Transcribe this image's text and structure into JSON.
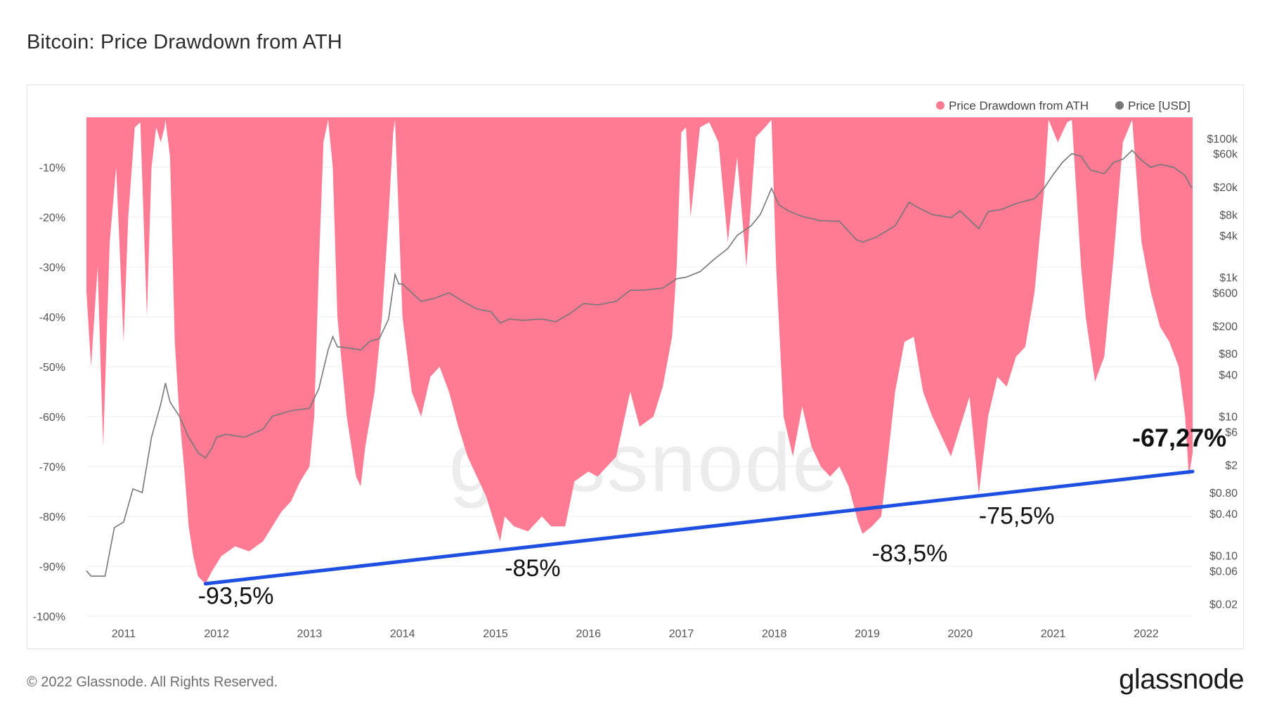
{
  "page": {
    "title": "Bitcoin: Price Drawdown from ATH",
    "copyright": "© 2022 Glassnode. All Rights Reserved.",
    "logo": "glassnode",
    "watermark": "glassnode"
  },
  "chart_data": {
    "type": "area",
    "title": "Bitcoin: Price Drawdown from ATH",
    "legend": {
      "placement": "top-right",
      "items": [
        {
          "name": "Price Drawdown from ATH",
          "color": "#ff7a93"
        },
        {
          "name": "Price [USD]",
          "color": "#777777"
        }
      ]
    },
    "grid": {
      "horizontal": true,
      "vertical": false
    },
    "x_axis": {
      "range": [
        2010.6,
        2022.5
      ],
      "ticks": [
        2011,
        2012,
        2013,
        2014,
        2015,
        2016,
        2017,
        2018,
        2019,
        2020,
        2021,
        2022
      ],
      "tick_labels": [
        "2011",
        "2012",
        "2013",
        "2014",
        "2015",
        "2016",
        "2017",
        "2018",
        "2019",
        "2020",
        "2021",
        "2022"
      ]
    },
    "y_left": {
      "range": [
        -100,
        0
      ],
      "ticks": [
        -10,
        -20,
        -30,
        -40,
        -50,
        -60,
        -70,
        -80,
        -90,
        -100
      ],
      "tick_labels": [
        "-10%",
        "-20%",
        "-30%",
        "-40%",
        "-50%",
        "-60%",
        "-70%",
        "-80%",
        "-90%",
        "-100%"
      ]
    },
    "y_right": {
      "scale": "log",
      "range": [
        0.0133,
        200000
      ],
      "ticks": [
        100000,
        60000,
        20000,
        8000,
        4000,
        1000,
        600,
        200,
        80,
        40,
        10,
        6,
        2,
        0.8,
        0.4,
        0.1,
        0.06,
        0.02
      ],
      "tick_labels": [
        "$100k",
        "$60k",
        "$20k",
        "$8k",
        "$4k",
        "$1k",
        "$600",
        "$200",
        "$80",
        "$40",
        "$10",
        "$6",
        "$2",
        "$0.80",
        "$0.40",
        "$0.10",
        "$0.06",
        "$0.02"
      ]
    },
    "series": [
      {
        "name": "Price Drawdown from ATH",
        "color": "#ff7a93",
        "points": [
          [
            2010.6,
            -35
          ],
          [
            2010.65,
            -50
          ],
          [
            2010.72,
            -30
          ],
          [
            2010.78,
            -66
          ],
          [
            2010.85,
            -25
          ],
          [
            2010.92,
            -10
          ],
          [
            2011.0,
            -45
          ],
          [
            2011.05,
            -20
          ],
          [
            2011.12,
            -2
          ],
          [
            2011.18,
            -1
          ],
          [
            2011.25,
            -40
          ],
          [
            2011.3,
            -10
          ],
          [
            2011.35,
            -2
          ],
          [
            2011.4,
            -5
          ],
          [
            2011.44,
            -2
          ],
          [
            2011.45,
            -0.5
          ],
          [
            2011.5,
            -8
          ],
          [
            2011.55,
            -45
          ],
          [
            2011.6,
            -60
          ],
          [
            2011.65,
            -70
          ],
          [
            2011.7,
            -82
          ],
          [
            2011.75,
            -88
          ],
          [
            2011.8,
            -92
          ],
          [
            2011.88,
            -93.5
          ],
          [
            2011.95,
            -91
          ],
          [
            2012.05,
            -88
          ],
          [
            2012.2,
            -86
          ],
          [
            2012.35,
            -87
          ],
          [
            2012.5,
            -85
          ],
          [
            2012.6,
            -82
          ],
          [
            2012.7,
            -79
          ],
          [
            2012.8,
            -77
          ],
          [
            2012.9,
            -73
          ],
          [
            2013.0,
            -70
          ],
          [
            2013.05,
            -60
          ],
          [
            2013.1,
            -30
          ],
          [
            2013.15,
            -5
          ],
          [
            2013.2,
            -0.5
          ],
          [
            2013.25,
            -10
          ],
          [
            2013.3,
            -40
          ],
          [
            2013.4,
            -60
          ],
          [
            2013.5,
            -72
          ],
          [
            2013.55,
            -74
          ],
          [
            2013.6,
            -66
          ],
          [
            2013.7,
            -55
          ],
          [
            2013.78,
            -40
          ],
          [
            2013.85,
            -20
          ],
          [
            2013.9,
            -3
          ],
          [
            2013.92,
            -0.5
          ],
          [
            2013.96,
            -20
          ],
          [
            2014.0,
            -40
          ],
          [
            2014.1,
            -55
          ],
          [
            2014.2,
            -60
          ],
          [
            2014.3,
            -52
          ],
          [
            2014.4,
            -50
          ],
          [
            2014.5,
            -55
          ],
          [
            2014.6,
            -62
          ],
          [
            2014.7,
            -68
          ],
          [
            2014.8,
            -72
          ],
          [
            2014.9,
            -76
          ],
          [
            2015.0,
            -82
          ],
          [
            2015.05,
            -85
          ],
          [
            2015.1,
            -80
          ],
          [
            2015.2,
            -82
          ],
          [
            2015.35,
            -83
          ],
          [
            2015.5,
            -80
          ],
          [
            2015.6,
            -82
          ],
          [
            2015.75,
            -82
          ],
          [
            2015.85,
            -73
          ],
          [
            2016.0,
            -71
          ],
          [
            2016.1,
            -72
          ],
          [
            2016.3,
            -68
          ],
          [
            2016.45,
            -55
          ],
          [
            2016.55,
            -62
          ],
          [
            2016.7,
            -60
          ],
          [
            2016.8,
            -54
          ],
          [
            2016.9,
            -44
          ],
          [
            2016.95,
            -30
          ],
          [
            2017.0,
            -3
          ],
          [
            2017.05,
            -2
          ],
          [
            2017.1,
            -20
          ],
          [
            2017.2,
            -2
          ],
          [
            2017.3,
            -1
          ],
          [
            2017.4,
            -5
          ],
          [
            2017.5,
            -25
          ],
          [
            2017.6,
            -8
          ],
          [
            2017.7,
            -30
          ],
          [
            2017.8,
            -4
          ],
          [
            2017.9,
            -2
          ],
          [
            2017.97,
            -0.5
          ],
          [
            2018.02,
            -30
          ],
          [
            2018.1,
            -60
          ],
          [
            2018.2,
            -68
          ],
          [
            2018.3,
            -58
          ],
          [
            2018.4,
            -66
          ],
          [
            2018.5,
            -70
          ],
          [
            2018.6,
            -72
          ],
          [
            2018.7,
            -70
          ],
          [
            2018.8,
            -74
          ],
          [
            2018.9,
            -81
          ],
          [
            2018.95,
            -83.5
          ],
          [
            2019.05,
            -82
          ],
          [
            2019.15,
            -80
          ],
          [
            2019.2,
            -72
          ],
          [
            2019.3,
            -55
          ],
          [
            2019.4,
            -45
          ],
          [
            2019.5,
            -44
          ],
          [
            2019.6,
            -55
          ],
          [
            2019.7,
            -60
          ],
          [
            2019.8,
            -64
          ],
          [
            2019.9,
            -68
          ],
          [
            2020.0,
            -62
          ],
          [
            2020.1,
            -56
          ],
          [
            2020.2,
            -75.5
          ],
          [
            2020.3,
            -60
          ],
          [
            2020.4,
            -52
          ],
          [
            2020.5,
            -54
          ],
          [
            2020.6,
            -48
          ],
          [
            2020.7,
            -46
          ],
          [
            2020.8,
            -35
          ],
          [
            2020.9,
            -15
          ],
          [
            2020.95,
            -0.5
          ],
          [
            2021.05,
            -5
          ],
          [
            2021.15,
            -1
          ],
          [
            2021.2,
            -0.5
          ],
          [
            2021.3,
            -30
          ],
          [
            2021.35,
            -40
          ],
          [
            2021.45,
            -53
          ],
          [
            2021.55,
            -48
          ],
          [
            2021.65,
            -28
          ],
          [
            2021.75,
            -5
          ],
          [
            2021.85,
            -0.5
          ],
          [
            2021.95,
            -25
          ],
          [
            2022.05,
            -35
          ],
          [
            2022.15,
            -42
          ],
          [
            2022.25,
            -45
          ],
          [
            2022.35,
            -50
          ],
          [
            2022.42,
            -60
          ],
          [
            2022.46,
            -72
          ],
          [
            2022.5,
            -67.27
          ]
        ]
      },
      {
        "name": "Price [USD]",
        "color": "#777777",
        "points": [
          [
            2010.6,
            0.06
          ],
          [
            2010.65,
            0.05
          ],
          [
            2010.8,
            0.05
          ],
          [
            2010.9,
            0.25
          ],
          [
            2011.0,
            0.3
          ],
          [
            2011.1,
            0.9
          ],
          [
            2011.2,
            0.8
          ],
          [
            2011.3,
            5
          ],
          [
            2011.4,
            15
          ],
          [
            2011.45,
            30
          ],
          [
            2011.5,
            16
          ],
          [
            2011.6,
            10
          ],
          [
            2011.7,
            5
          ],
          [
            2011.8,
            3
          ],
          [
            2011.88,
            2.5
          ],
          [
            2011.95,
            3.5
          ],
          [
            2012.0,
            5
          ],
          [
            2012.1,
            5.5
          ],
          [
            2012.3,
            5
          ],
          [
            2012.5,
            6.5
          ],
          [
            2012.6,
            10
          ],
          [
            2012.8,
            12
          ],
          [
            2013.0,
            13
          ],
          [
            2013.1,
            25
          ],
          [
            2013.2,
            90
          ],
          [
            2013.25,
            140
          ],
          [
            2013.3,
            100
          ],
          [
            2013.45,
            95
          ],
          [
            2013.55,
            90
          ],
          [
            2013.65,
            120
          ],
          [
            2013.75,
            130
          ],
          [
            2013.85,
            250
          ],
          [
            2013.92,
            1100
          ],
          [
            2013.96,
            800
          ],
          [
            2014.0,
            800
          ],
          [
            2014.1,
            600
          ],
          [
            2014.2,
            450
          ],
          [
            2014.35,
            500
          ],
          [
            2014.5,
            600
          ],
          [
            2014.65,
            450
          ],
          [
            2014.8,
            350
          ],
          [
            2014.95,
            320
          ],
          [
            2015.05,
            220
          ],
          [
            2015.15,
            250
          ],
          [
            2015.3,
            240
          ],
          [
            2015.5,
            250
          ],
          [
            2015.65,
            230
          ],
          [
            2015.8,
            300
          ],
          [
            2015.95,
            420
          ],
          [
            2016.1,
            400
          ],
          [
            2016.3,
            450
          ],
          [
            2016.45,
            650
          ],
          [
            2016.6,
            650
          ],
          [
            2016.8,
            700
          ],
          [
            2016.95,
            950
          ],
          [
            2017.05,
            1000
          ],
          [
            2017.2,
            1200
          ],
          [
            2017.35,
            1800
          ],
          [
            2017.5,
            2600
          ],
          [
            2017.6,
            4000
          ],
          [
            2017.75,
            5500
          ],
          [
            2017.85,
            8000
          ],
          [
            2017.97,
            19000
          ],
          [
            2018.05,
            11000
          ],
          [
            2018.15,
            9000
          ],
          [
            2018.3,
            7500
          ],
          [
            2018.5,
            6500
          ],
          [
            2018.7,
            6400
          ],
          [
            2018.88,
            3500
          ],
          [
            2018.95,
            3200
          ],
          [
            2019.1,
            3800
          ],
          [
            2019.3,
            5500
          ],
          [
            2019.45,
            12000
          ],
          [
            2019.55,
            10000
          ],
          [
            2019.7,
            8000
          ],
          [
            2019.9,
            7200
          ],
          [
            2020.0,
            9000
          ],
          [
            2020.2,
            5000
          ],
          [
            2020.3,
            8800
          ],
          [
            2020.45,
            9500
          ],
          [
            2020.6,
            11500
          ],
          [
            2020.8,
            13500
          ],
          [
            2020.9,
            19000
          ],
          [
            2021.0,
            30000
          ],
          [
            2021.1,
            45000
          ],
          [
            2021.2,
            60000
          ],
          [
            2021.3,
            55000
          ],
          [
            2021.4,
            35000
          ],
          [
            2021.55,
            31000
          ],
          [
            2021.65,
            45000
          ],
          [
            2021.75,
            50000
          ],
          [
            2021.85,
            67000
          ],
          [
            2021.95,
            48000
          ],
          [
            2022.05,
            38000
          ],
          [
            2022.15,
            42000
          ],
          [
            2022.3,
            38000
          ],
          [
            2022.42,
            29000
          ],
          [
            2022.48,
            20000
          ],
          [
            2022.5,
            19500
          ]
        ]
      }
    ],
    "trendline": {
      "color": "#1e4fe0",
      "from": [
        2011.88,
        -93.5
      ],
      "to": [
        2022.5,
        -71.0
      ]
    },
    "annotations": [
      {
        "text": "-93,5%",
        "x": 2011.8,
        "y": -97.5,
        "bold": false
      },
      {
        "text": "-85%",
        "x": 2015.1,
        "y": -92,
        "bold": false
      },
      {
        "text": "-83,5%",
        "x": 2019.05,
        "y": -89,
        "bold": false
      },
      {
        "text": "-75,5%",
        "x": 2020.2,
        "y": -81.5,
        "bold": false
      },
      {
        "text": "-67,27%",
        "x": 2021.85,
        "y": -66,
        "bold": true
      }
    ]
  }
}
